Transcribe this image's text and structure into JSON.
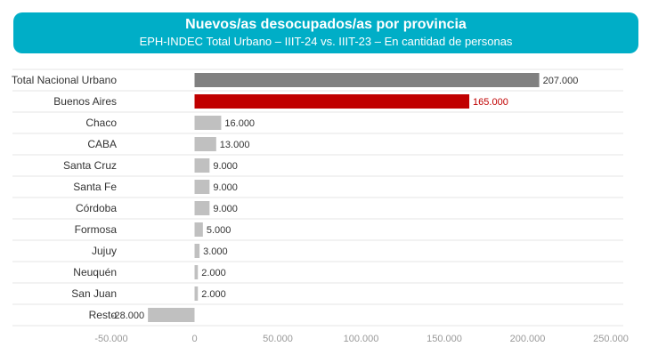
{
  "header": {
    "title": "Nuevos/as desocupados/as por provincia",
    "subtitle": "EPH-INDEC Total Urbano – IIIT-24 vs. IIIT-23 – En cantidad de personas"
  },
  "colors": {
    "header_bg": "#00aec7",
    "bar_default": "#c0c0c0",
    "bar_total": "#808080",
    "bar_highlight": "#c00000",
    "label_highlight": "#c00000",
    "text": "#333333",
    "tick": "#999999",
    "grid": "#e6e6e6"
  },
  "chart_data": {
    "type": "bar",
    "orientation": "horizontal",
    "title": "Nuevos/as desocupados/as por provincia",
    "subtitle": "EPH-INDEC Total Urbano – IIIT-24 vs. IIIT-23 – En cantidad de personas",
    "categories": [
      "Total Nacional Urbano",
      "Buenos Aires",
      "Chaco",
      "CABA",
      "Santa Cruz",
      "Santa Fe",
      "Córdoba",
      "Formosa",
      "Jujuy",
      "Neuquén",
      "San Juan",
      "Resto"
    ],
    "values": [
      207000,
      165000,
      16000,
      13000,
      9000,
      9000,
      9000,
      5000,
      3000,
      2000,
      2000,
      -28000
    ],
    "value_labels": [
      "207.000",
      "165.000",
      "16.000",
      "13.000",
      "9.000",
      "9.000",
      "9.000",
      "5.000",
      "3.000",
      "2.000",
      "2.000",
      "-28.000"
    ],
    "bar_roles": [
      "total",
      "highlight",
      "default",
      "default",
      "default",
      "default",
      "default",
      "default",
      "default",
      "default",
      "default",
      "default"
    ],
    "xlim": [
      -50000,
      250000
    ],
    "xticks": [
      -50000,
      0,
      50000,
      100000,
      150000,
      200000,
      250000
    ],
    "xtick_labels": [
      "-50.000",
      "0",
      "50.000",
      "100.000",
      "150.000",
      "200.000",
      "250.000"
    ],
    "grid": true,
    "legend": "none"
  }
}
